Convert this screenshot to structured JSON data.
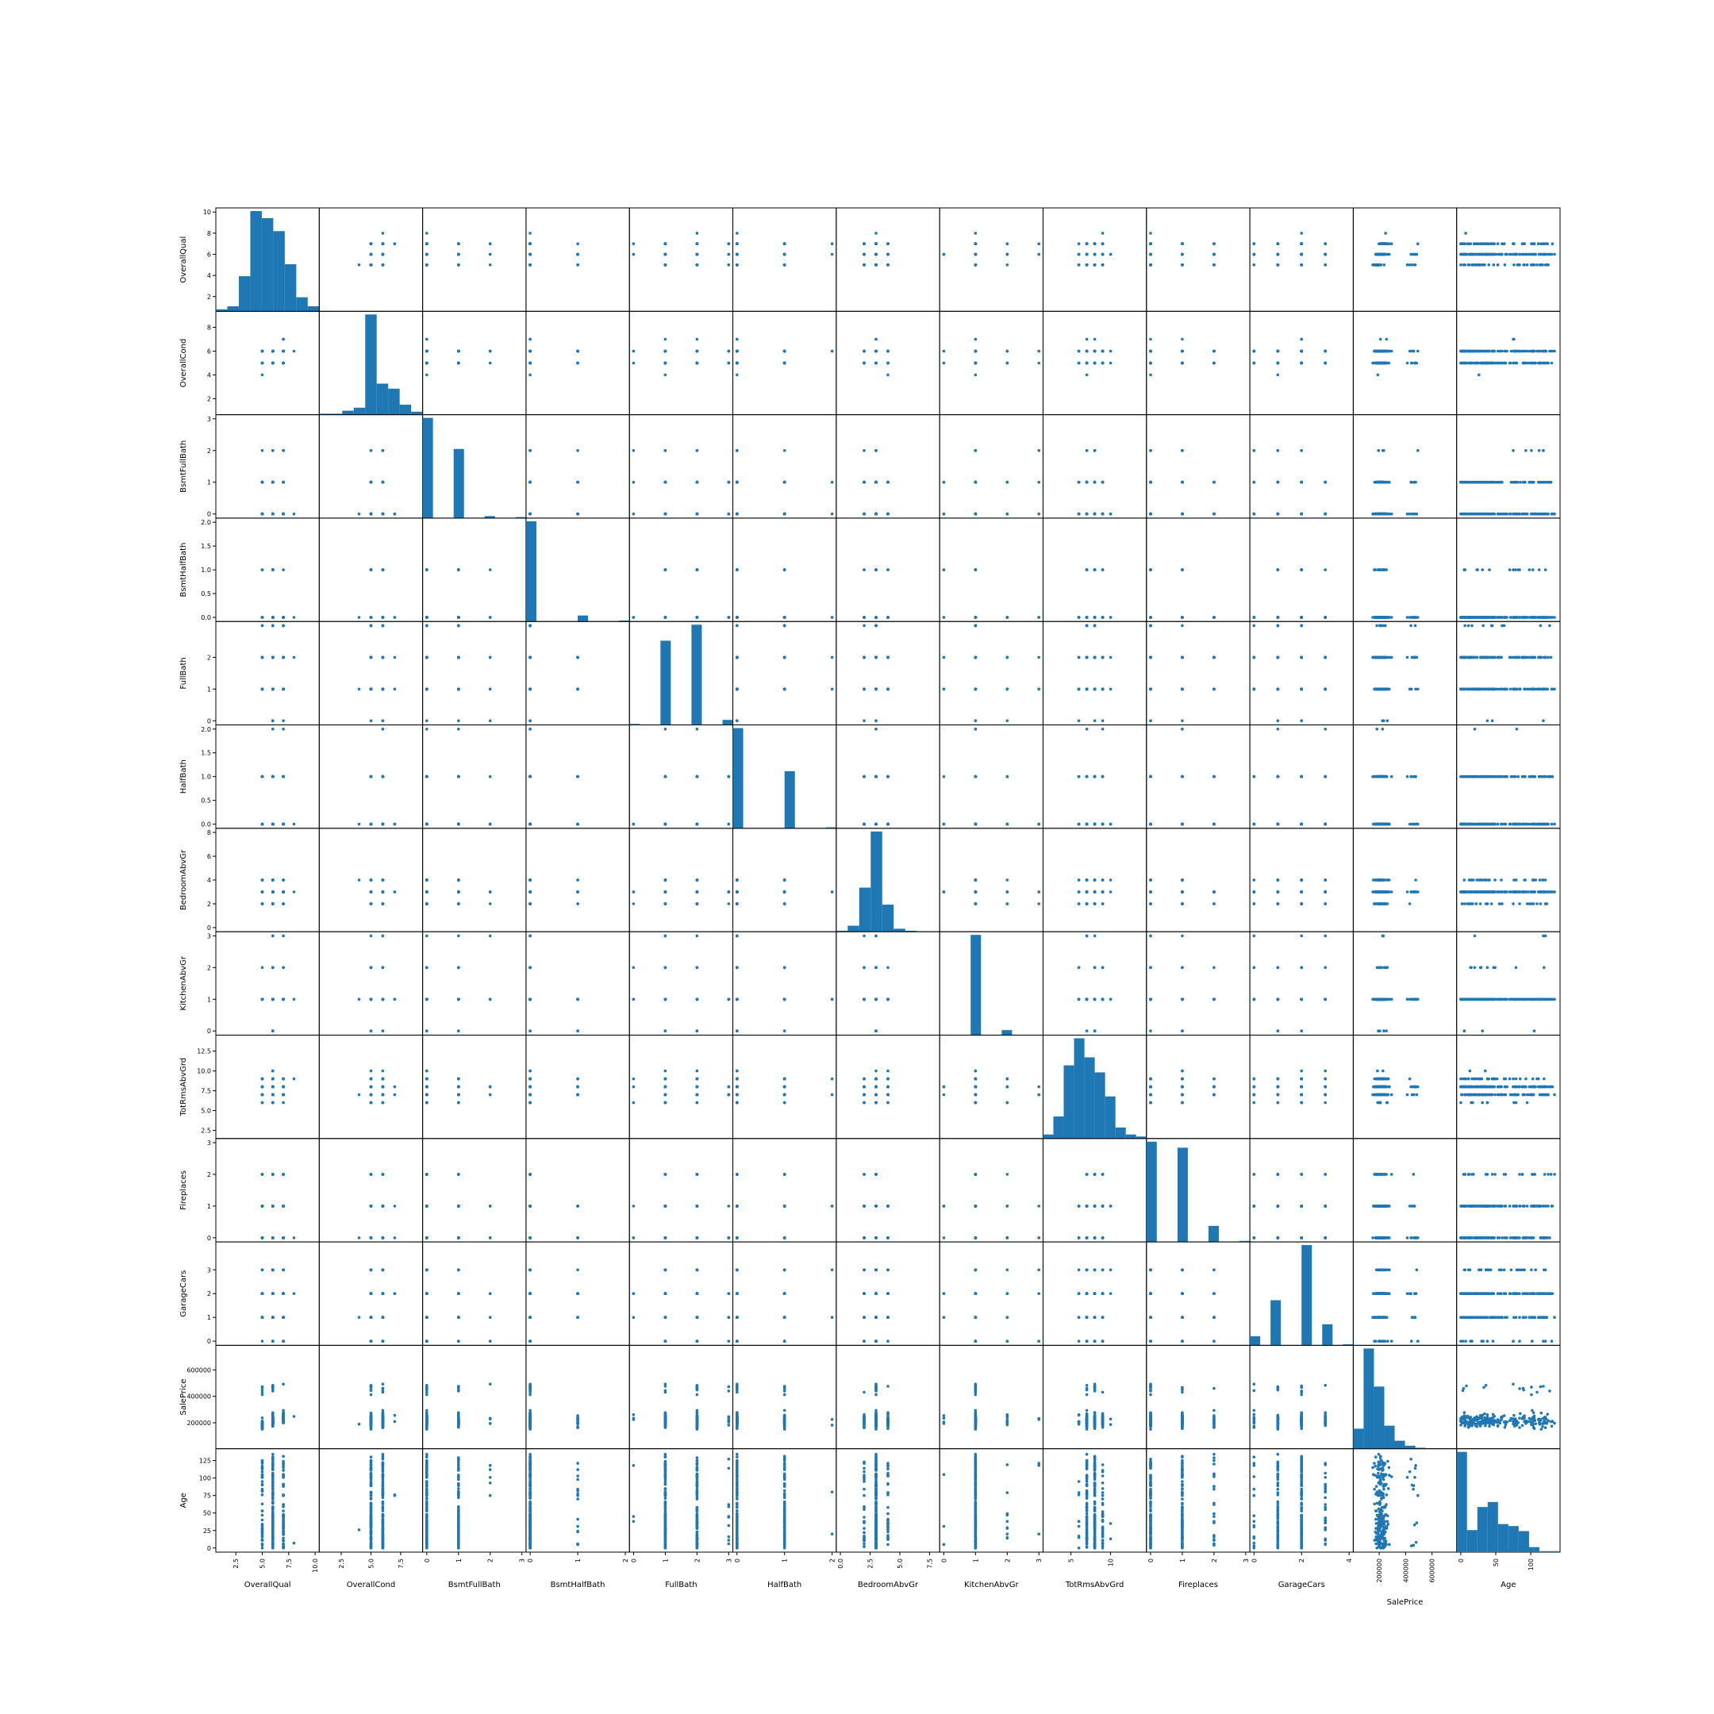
{
  "chart_data": {
    "type": "scatter",
    "kind": "scatter-matrix",
    "diagonal": "histogram",
    "marker_color": "#1f77b4",
    "variables": [
      {
        "name": "OverallQual",
        "range": [
          1,
          10
        ],
        "yticks": [
          2,
          4,
          6,
          8,
          10
        ],
        "ytick_labels": [
          "2",
          "4",
          "6",
          "8",
          "10"
        ],
        "xticks": [
          2.5,
          5,
          7.5,
          10
        ],
        "xtick_labels": [
          "2.5",
          "5.0",
          "7.5",
          "10.0"
        ],
        "hist": [
          0.02,
          0.05,
          0.35,
          1.0,
          0.93,
          0.8,
          0.47,
          0.14,
          0.05
        ]
      },
      {
        "name": "OverallCond",
        "range": [
          1,
          9
        ],
        "yticks": [
          2,
          4,
          6,
          8
        ],
        "ytick_labels": [
          "2",
          "4",
          "6",
          "8"
        ],
        "xticks": [
          2.5,
          5,
          7.5
        ],
        "xtick_labels": [
          "2.5",
          "5.0",
          "7.5"
        ],
        "hist": [
          0.01,
          0.01,
          0.04,
          0.07,
          1.0,
          0.31,
          0.26,
          0.1,
          0.03
        ]
      },
      {
        "name": "BsmtFullBath",
        "range": [
          0,
          3
        ],
        "yticks": [
          0,
          1,
          2,
          3
        ],
        "ytick_labels": [
          "0",
          "1",
          "2",
          "3"
        ],
        "xticks": [
          0,
          1,
          2,
          3
        ],
        "xtick_labels": [
          "0",
          "1",
          "2",
          "3"
        ],
        "hist": [
          1.0,
          0,
          0,
          0.69,
          0,
          0,
          0.02,
          0,
          0,
          0.01
        ]
      },
      {
        "name": "BsmtHalfBath",
        "range": [
          0,
          2
        ],
        "yticks": [
          0,
          0.5,
          1,
          1.5,
          2
        ],
        "ytick_labels": [
          "0.0",
          "0.5",
          "1.0",
          "1.5",
          "2.0"
        ],
        "xticks": [
          0,
          1,
          2
        ],
        "xtick_labels": [
          "0",
          "1",
          "2"
        ],
        "hist": [
          1.0,
          0,
          0,
          0,
          0,
          0.06,
          0,
          0,
          0,
          0.01
        ]
      },
      {
        "name": "FullBath",
        "range": [
          0,
          3
        ],
        "yticks": [
          0,
          1,
          2
        ],
        "ytick_labels": [
          "0",
          "1",
          "2"
        ],
        "xticks": [
          0,
          1,
          2,
          3
        ],
        "xtick_labels": [
          "0",
          "1",
          "2",
          "3"
        ],
        "hist": [
          0.01,
          0,
          0,
          0.84,
          0,
          0,
          1.0,
          0,
          0,
          0.05
        ]
      },
      {
        "name": "HalfBath",
        "range": [
          0,
          2
        ],
        "yticks": [
          0,
          0.5,
          1,
          1.5,
          2
        ],
        "ytick_labels": [
          "0.0",
          "0.5",
          "1.0",
          "1.5",
          "2.0"
        ],
        "xticks": [
          0,
          1,
          2
        ],
        "xtick_labels": [
          "0",
          "1",
          "2"
        ],
        "hist": [
          1.0,
          0,
          0,
          0,
          0,
          0.57,
          0,
          0,
          0,
          0.01
        ]
      },
      {
        "name": "BedroomAbvGr",
        "range": [
          0,
          8
        ],
        "yticks": [
          0,
          2,
          4,
          6,
          8
        ],
        "ytick_labels": [
          "0",
          "2",
          "4",
          "6",
          "8"
        ],
        "xticks": [
          0,
          2.5,
          5,
          7.5
        ],
        "xtick_labels": [
          "0.0",
          "2.5",
          "5.0",
          "7.5"
        ],
        "hist": [
          0.01,
          0.06,
          0.44,
          1.0,
          0.27,
          0.03,
          0.01,
          0,
          0.002
        ]
      },
      {
        "name": "KitchenAbvGr",
        "range": [
          0,
          3
        ],
        "yticks": [
          0,
          1,
          2,
          3
        ],
        "ytick_labels": [
          "0",
          "1",
          "2",
          "3"
        ],
        "xticks": [
          0,
          1,
          2,
          3
        ],
        "xtick_labels": [
          "0",
          "1",
          "2",
          "3"
        ],
        "hist": [
          0.002,
          0,
          0,
          1.0,
          0,
          0,
          0.05,
          0,
          0,
          0.002
        ]
      },
      {
        "name": "TotRmsAbvGrd",
        "range": [
          2,
          14
        ],
        "yticks": [
          2.5,
          5,
          7.5,
          10,
          12.5
        ],
        "ytick_labels": [
          "2.5",
          "5.0",
          "7.5",
          "10.0",
          "12.5"
        ],
        "xticks": [
          5,
          10
        ],
        "xtick_labels": [
          "5",
          "10"
        ],
        "hist": [
          0.04,
          0.22,
          0.73,
          1.0,
          0.81,
          0.66,
          0.42,
          0.11,
          0.04,
          0.02
        ]
      },
      {
        "name": "Fireplaces",
        "range": [
          0,
          3
        ],
        "yticks": [
          0,
          1,
          2,
          3
        ],
        "ytick_labels": [
          "0",
          "1",
          "2",
          "3"
        ],
        "xticks": [
          0,
          1,
          2,
          3
        ],
        "xtick_labels": [
          "0",
          "1",
          "2",
          "3"
        ],
        "hist": [
          1.0,
          0,
          0,
          0.94,
          0,
          0,
          0.16,
          0,
          0,
          0.01
        ]
      },
      {
        "name": "GarageCars",
        "range": [
          0,
          4
        ],
        "yticks": [
          0,
          1,
          2,
          3
        ],
        "ytick_labels": [
          "0",
          "1",
          "2",
          "3"
        ],
        "xticks": [
          0,
          2,
          4
        ],
        "xtick_labels": [
          "0",
          "2",
          "4"
        ],
        "hist": [
          0.09,
          0,
          0.45,
          0,
          0,
          1.0,
          0,
          0.21,
          0,
          0.01
        ]
      },
      {
        "name": "SalePrice",
        "range": [
          34900,
          755000
        ],
        "yticks": [
          200000,
          400000,
          600000
        ],
        "ytick_labels": [
          "200000",
          "400000",
          "600000"
        ],
        "xticks": [
          200000,
          400000,
          600000
        ],
        "xtick_labels": [
          "200000",
          "400000",
          "600000"
        ],
        "hist": [
          0.2,
          1.0,
          0.62,
          0.23,
          0.08,
          0.03,
          0.01,
          0.005,
          0.003,
          0.003
        ]
      },
      {
        "name": "Age",
        "range": [
          0,
          136
        ],
        "yticks": [
          0,
          25,
          50,
          75,
          100,
          125
        ],
        "ytick_labels": [
          "0",
          "25",
          "50",
          "75",
          "100",
          "125"
        ],
        "xticks": [
          0,
          50,
          100
        ],
        "xtick_labels": [
          "0",
          "50",
          "100"
        ],
        "hist": [
          1.0,
          0.22,
          0.45,
          0.5,
          0.28,
          0.26,
          0.21,
          0.05,
          0.01,
          0.01
        ]
      }
    ]
  }
}
